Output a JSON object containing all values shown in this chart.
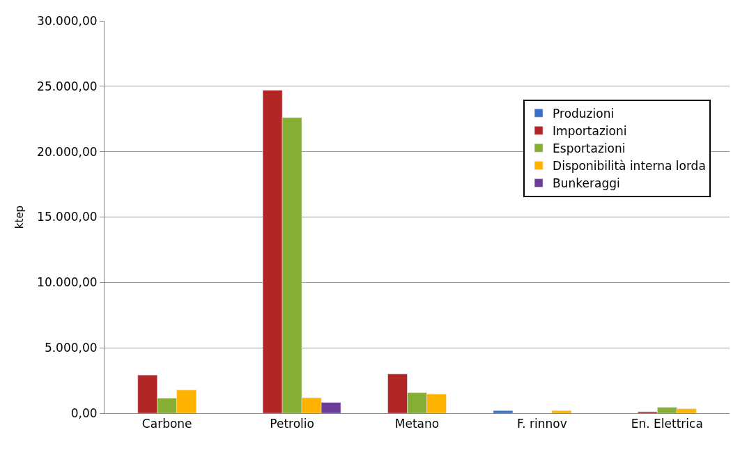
{
  "chart_data": {
    "type": "bar",
    "ylabel": "ktep",
    "categories": [
      "Carbone",
      "Petrolio",
      "Metano",
      "F. rinnov",
      "En. Elettrica"
    ],
    "series": [
      {
        "name": "Produzioni",
        "color": "#3a6fc4",
        "values": [
          null,
          null,
          null,
          200,
          null
        ]
      },
      {
        "name": "Importazioni",
        "color": "#b22626",
        "values": [
          2920,
          24700,
          3000,
          null,
          110
        ]
      },
      {
        "name": "Esportazioni",
        "color": "#86ae34",
        "values": [
          1150,
          22600,
          1570,
          null,
          450
        ]
      },
      {
        "name": "Disponibilità interna lorda",
        "color": "#ffb300",
        "values": [
          1770,
          1180,
          1460,
          200,
          340
        ]
      },
      {
        "name": "Bunkeraggi",
        "color": "#6a3d9a",
        "values": [
          null,
          820,
          null,
          null,
          null
        ]
      }
    ],
    "ylim": [
      0,
      30000
    ],
    "yticks": [
      {
        "value": 0,
        "label": "0,00"
      },
      {
        "value": 5000,
        "label": "5.000,00"
      },
      {
        "value": 10000,
        "label": "10.000,00"
      },
      {
        "value": 15000,
        "label": "15.000,00"
      },
      {
        "value": 20000,
        "label": "20.000,00"
      },
      {
        "value": 25000,
        "label": "25.000,00"
      },
      {
        "value": 30000,
        "label": "30.000,00"
      }
    ],
    "grid": "y",
    "legend": "top right"
  }
}
